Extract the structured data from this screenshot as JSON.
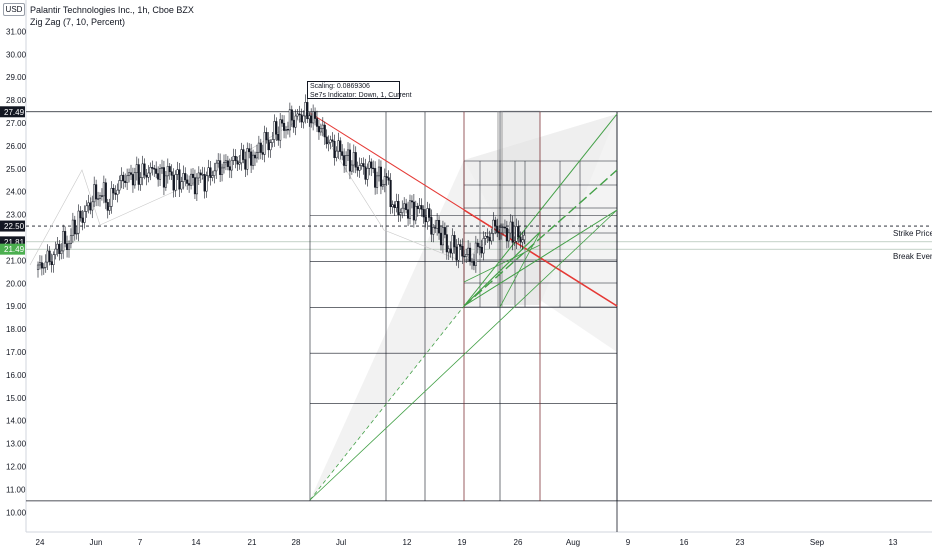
{
  "header": {
    "symbol_title": "Palantir Technologies Inc., 1h, Cboe BZX",
    "indicator": "Zig Zag (7, 10, Percent)",
    "currency": "USD"
  },
  "annotation": {
    "line1": "Scaling: 0.0869306",
    "line2": "Se7s Indicator: Down, 1, Current"
  },
  "colors": {
    "candle": "#131722",
    "red_line": "#e53935",
    "green_line": "#43a047",
    "grid_line": "#131722",
    "fan_shade": "#eeeeee",
    "label_green": "#4caf50"
  },
  "chart_data": {
    "type": "candlestick",
    "title": "Palantir Technologies Inc., 1h, Cboe BZX",
    "y_axis": {
      "ticks": [
        "31.00",
        "30.00",
        "29.00",
        "28.00",
        "27.00",
        "26.00",
        "25.00",
        "24.00",
        "23.00",
        "21.00",
        "20.00",
        "19.00",
        "18.00",
        "17.00",
        "16.00",
        "15.00",
        "14.00",
        "13.00",
        "12.00",
        "11.00",
        "10.00"
      ],
      "range": [
        9.7,
        31.6
      ]
    },
    "x_axis": {
      "ticks": [
        "24",
        "Jun",
        "7",
        "14",
        "21",
        "28",
        "Jul",
        "12",
        "19",
        "26",
        "Aug",
        "9",
        "16",
        "23",
        "Sep",
        "13"
      ]
    },
    "price_labels": [
      {
        "value": "27.49",
        "style": "dark"
      },
      {
        "value": "22.50",
        "style": "dark"
      },
      {
        "value": "21.81",
        "style": "dark"
      },
      {
        "value": "21.49",
        "style": "green"
      }
    ],
    "horizontal_lines": [
      {
        "price": 27.49,
        "style": "solid"
      },
      {
        "price": 22.5,
        "style": "dashed",
        "label": "Strike Price"
      },
      {
        "price": 21.81,
        "style": "solid-light"
      },
      {
        "price": 21.49,
        "style": "solid-light",
        "label": "Break Even"
      },
      {
        "price": 10.5,
        "style": "solid"
      }
    ],
    "series_close": [
      {
        "date": "2021-05-24",
        "close": 20.6
      },
      {
        "date": "2021-05-26",
        "close": 21.3
      },
      {
        "date": "2021-05-28",
        "close": 22.0
      },
      {
        "date": "2021-06-01",
        "close": 24.2
      },
      {
        "date": "2021-06-02",
        "close": 23.5
      },
      {
        "date": "2021-06-04",
        "close": 24.6
      },
      {
        "date": "2021-06-08",
        "close": 24.9
      },
      {
        "date": "2021-06-10",
        "close": 24.6
      },
      {
        "date": "2021-06-14",
        "close": 24.4
      },
      {
        "date": "2021-06-16",
        "close": 25.0
      },
      {
        "date": "2021-06-18",
        "close": 25.3
      },
      {
        "date": "2021-06-21",
        "close": 25.6
      },
      {
        "date": "2021-06-23",
        "close": 26.4
      },
      {
        "date": "2021-06-25",
        "close": 27.0
      },
      {
        "date": "2021-06-28",
        "close": 27.49
      },
      {
        "date": "2021-06-30",
        "close": 26.4
      },
      {
        "date": "2021-07-02",
        "close": 25.6
      },
      {
        "date": "2021-07-06",
        "close": 24.8
      },
      {
        "date": "2021-07-08",
        "close": 24.4
      },
      {
        "date": "2021-07-09",
        "close": 23.2
      },
      {
        "date": "2021-07-12",
        "close": 23.3
      },
      {
        "date": "2021-07-14",
        "close": 22.6
      },
      {
        "date": "2021-07-16",
        "close": 21.7
      },
      {
        "date": "2021-07-19",
        "close": 21.1
      },
      {
        "date": "2021-07-20",
        "close": 21.6
      },
      {
        "date": "2021-07-22",
        "close": 22.4
      },
      {
        "date": "2021-07-23",
        "close": 22.3
      },
      {
        "date": "2021-07-26",
        "close": 21.9
      }
    ],
    "labels": {
      "strike": "Strike Price",
      "break_even": "Break Even"
    }
  }
}
